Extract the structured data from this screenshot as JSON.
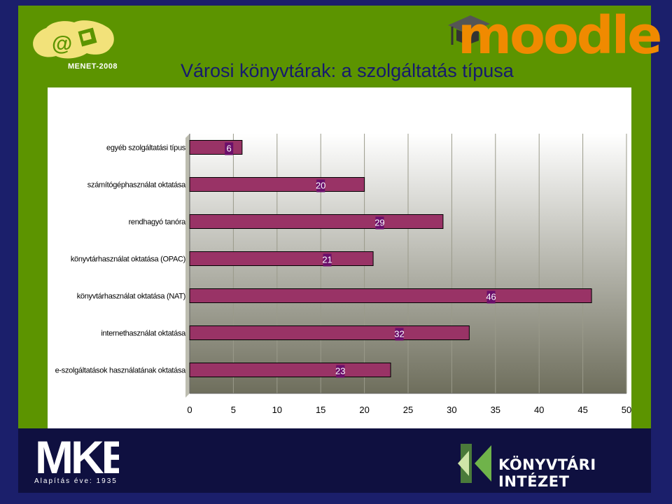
{
  "slide": {
    "title": "Városi könyvtárak: a szolgáltatás típusa",
    "logo_menet": "MENET-2008",
    "logo_moodle": "moodle",
    "logo_mke_year": "Alapítás éve: 1935",
    "logo_ki": "KÖNYVTÁRI INTÉZET"
  },
  "chart_data": {
    "type": "bar",
    "orientation": "horizontal",
    "categories": [
      "egyéb szolgáltatási típus",
      "számítógéphasználat oktatása",
      "rendhagyó tanóra",
      "könyvtárhasználat oktatása (OPAC)",
      "könyvtárhasználat oktatása (NAT)",
      "internethasználat oktatása",
      "e-szolgáltatások használatának oktatása"
    ],
    "values": [
      6,
      20,
      29,
      21,
      46,
      32,
      23
    ],
    "xlim": [
      0,
      50
    ],
    "xticks": [
      "0",
      "5",
      "10",
      "15",
      "20",
      "25",
      "30",
      "35",
      "40",
      "45",
      "50"
    ],
    "title": "",
    "xlabel": "",
    "ylabel": "",
    "grid": true,
    "colors": {
      "bar": "#993366",
      "label_bg": "#6b0f6b",
      "plot_bg_top": "#ffffff",
      "plot_bg_bottom": "#6e6e5c"
    }
  }
}
